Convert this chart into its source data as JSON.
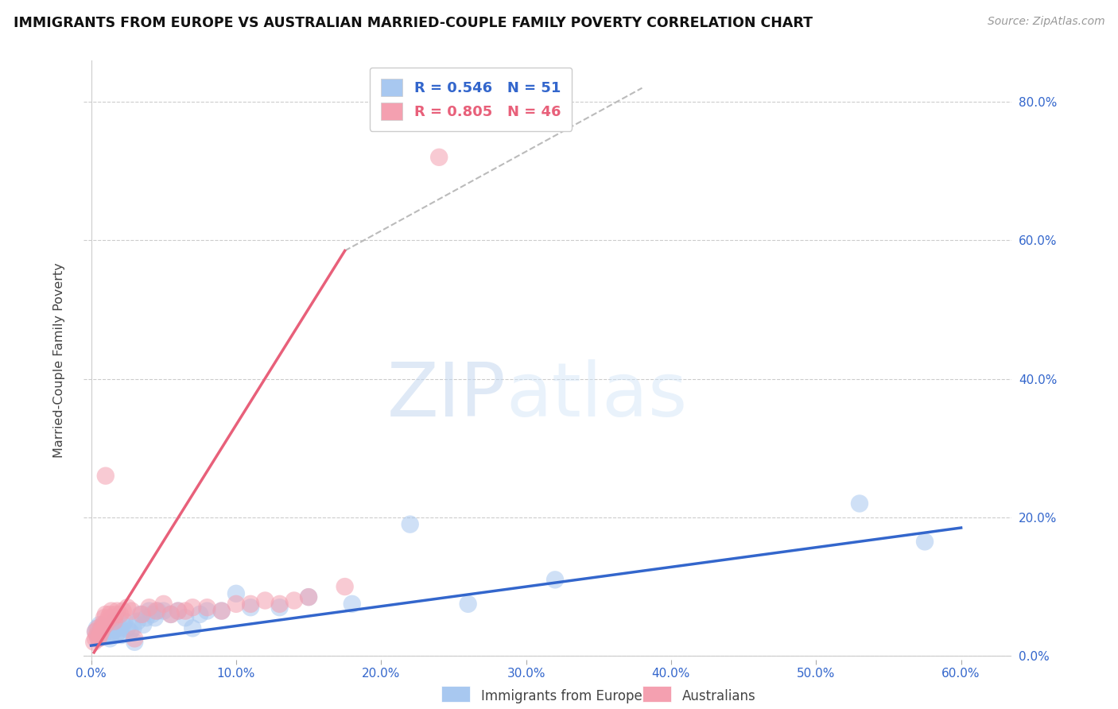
{
  "title": "IMMIGRANTS FROM EUROPE VS AUSTRALIAN MARRIED-COUPLE FAMILY POVERTY CORRELATION CHART",
  "source": "Source: ZipAtlas.com",
  "ylabel_label": "Married-Couple Family Poverty",
  "legend_label1": "Immigrants from Europe",
  "legend_label2": "Australians",
  "r1": 0.546,
  "n1": 51,
  "r2": 0.805,
  "n2": 46,
  "xlim": [
    -0.005,
    0.635
  ],
  "ylim": [
    -0.005,
    0.86
  ],
  "xticks": [
    0.0,
    0.1,
    0.2,
    0.3,
    0.4,
    0.5,
    0.6
  ],
  "yticks": [
    0.0,
    0.2,
    0.4,
    0.6,
    0.8
  ],
  "color_blue": "#A8C8F0",
  "color_pink": "#F4A0B0",
  "line_color_blue": "#3366CC",
  "line_color_pink": "#E8607A",
  "watermark_zip": "ZIP",
  "watermark_atlas": "atlas",
  "blue_scatter_x": [
    0.003,
    0.004,
    0.005,
    0.006,
    0.007,
    0.008,
    0.009,
    0.01,
    0.011,
    0.012,
    0.013,
    0.014,
    0.015,
    0.016,
    0.017,
    0.018,
    0.019,
    0.02,
    0.021,
    0.022,
    0.023,
    0.025,
    0.027,
    0.029,
    0.03,
    0.032,
    0.034,
    0.036,
    0.038,
    0.04,
    0.042,
    0.044,
    0.046,
    0.05,
    0.055,
    0.06,
    0.065,
    0.07,
    0.075,
    0.08,
    0.09,
    0.1,
    0.11,
    0.13,
    0.15,
    0.18,
    0.22,
    0.26,
    0.32,
    0.53,
    0.575
  ],
  "blue_scatter_y": [
    0.035,
    0.04,
    0.025,
    0.045,
    0.035,
    0.03,
    0.04,
    0.035,
    0.04,
    0.03,
    0.025,
    0.04,
    0.035,
    0.05,
    0.03,
    0.04,
    0.035,
    0.04,
    0.03,
    0.045,
    0.05,
    0.04,
    0.035,
    0.04,
    0.02,
    0.05,
    0.06,
    0.045,
    0.055,
    0.065,
    0.06,
    0.055,
    0.065,
    0.065,
    0.06,
    0.065,
    0.055,
    0.04,
    0.06,
    0.065,
    0.065,
    0.09,
    0.07,
    0.07,
    0.085,
    0.075,
    0.19,
    0.075,
    0.11,
    0.22,
    0.165
  ],
  "pink_scatter_x": [
    0.002,
    0.003,
    0.003,
    0.004,
    0.005,
    0.005,
    0.006,
    0.007,
    0.007,
    0.008,
    0.008,
    0.009,
    0.01,
    0.01,
    0.011,
    0.012,
    0.013,
    0.014,
    0.015,
    0.016,
    0.017,
    0.018,
    0.02,
    0.022,
    0.025,
    0.028,
    0.03,
    0.035,
    0.04,
    0.045,
    0.05,
    0.055,
    0.06,
    0.065,
    0.07,
    0.08,
    0.09,
    0.1,
    0.11,
    0.12,
    0.13,
    0.14,
    0.15,
    0.175,
    0.01,
    0.24
  ],
  "pink_scatter_y": [
    0.02,
    0.025,
    0.035,
    0.03,
    0.025,
    0.04,
    0.03,
    0.04,
    0.035,
    0.045,
    0.04,
    0.055,
    0.045,
    0.06,
    0.05,
    0.055,
    0.06,
    0.065,
    0.055,
    0.05,
    0.06,
    0.065,
    0.06,
    0.065,
    0.07,
    0.065,
    0.025,
    0.06,
    0.07,
    0.065,
    0.075,
    0.06,
    0.065,
    0.065,
    0.07,
    0.07,
    0.065,
    0.075,
    0.075,
    0.08,
    0.075,
    0.08,
    0.085,
    0.1,
    0.26,
    0.72
  ],
  "blue_line_x": [
    0.0,
    0.6
  ],
  "blue_line_y": [
    0.015,
    0.185
  ],
  "pink_line_x": [
    0.002,
    0.175
  ],
  "pink_line_y": [
    0.005,
    0.585
  ],
  "dash_line_x": [
    0.175,
    0.38
  ],
  "dash_line_y": [
    0.585,
    0.82
  ]
}
